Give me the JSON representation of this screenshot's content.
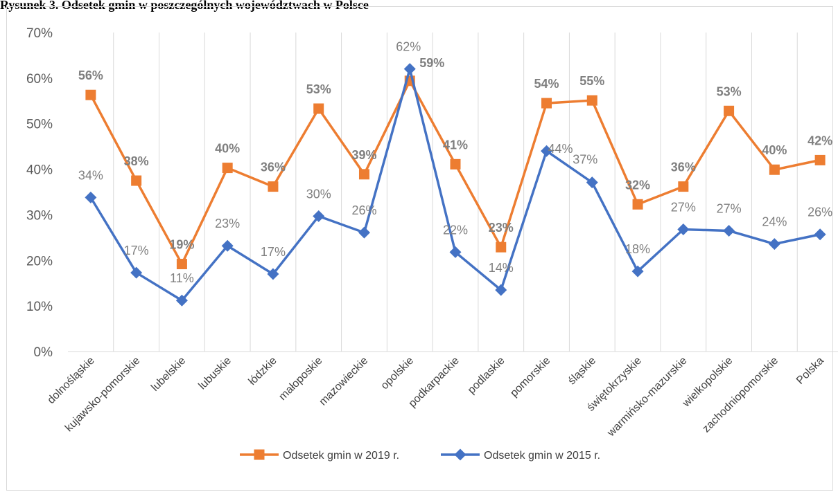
{
  "header": {
    "title": "Rysunek 3. Odsetek gmin w poszczególnych województwach w Polsce"
  },
  "chart_data": {
    "type": "line",
    "title": "",
    "xlabel": "",
    "ylabel": "",
    "ylim": [
      0,
      70
    ],
    "yticks": [
      "0%",
      "10%",
      "20%",
      "30%",
      "40%",
      "50%",
      "60%",
      "70%"
    ],
    "grid": "vertical",
    "legend_position": "bottom",
    "categories": [
      "dolnośląskie",
      "kujawsko-pomorskie",
      "lubelskie",
      "lubuskie",
      "łódzkie",
      "małoposkie",
      "mazowieckie",
      "opolskie",
      "podkarpackie",
      "podlaskie",
      "pomorskie",
      "śląskie",
      "świętokrzyskie",
      "warmińsko-mazurskie",
      "wielkopolskie",
      "zachodniopomorskie",
      "Polska"
    ],
    "series": [
      {
        "name": "Odsetek gmin w 2019 r.",
        "color": "#ed7d31",
        "marker": "square",
        "values": [
          56.3,
          37.5,
          19.2,
          40.3,
          36.2,
          53.3,
          38.9,
          59.4,
          41.1,
          22.9,
          54.5,
          55.1,
          32.3,
          36.2,
          52.8,
          39.9,
          42.0
        ],
        "labels": [
          "56%",
          "38%",
          "19%",
          "40%",
          "36%",
          "53%",
          "39%",
          "59%",
          "41%",
          "23%",
          "54%",
          "55%",
          "32%",
          "36%",
          "53%",
          "40%",
          "42%"
        ]
      },
      {
        "name": "Odsetek gmin w 2015 r.",
        "color": "#4472c4",
        "marker": "diamond",
        "values": [
          33.8,
          17.3,
          11.2,
          23.2,
          17.0,
          29.7,
          26.1,
          62.0,
          21.8,
          13.5,
          44.0,
          37.1,
          17.6,
          26.8,
          26.5,
          23.6,
          25.7
        ],
        "labels": [
          "34%",
          "17%",
          "11%",
          "23%",
          "17%",
          "30%",
          "26%",
          "62%",
          "22%",
          "14%",
          "44%",
          "37%",
          "18%",
          "27%",
          "27%",
          "24%",
          "26%"
        ]
      }
    ]
  }
}
